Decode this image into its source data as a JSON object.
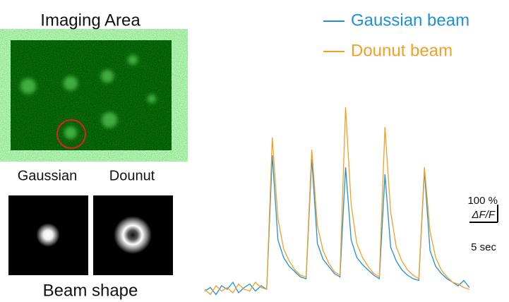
{
  "figure": {
    "image_title": "Imaging Area",
    "beam_labels": [
      "Gaussian",
      "Dounut"
    ],
    "beam_caption": "Beam shape"
  },
  "chart_data": {
    "type": "line",
    "x": [
      0,
      1,
      2,
      3,
      4,
      5,
      6,
      7,
      8,
      9,
      10,
      11,
      12,
      13,
      14,
      15,
      16,
      17,
      18,
      19,
      20,
      21,
      22,
      23,
      24,
      25,
      26,
      27,
      28,
      29,
      30,
      31,
      32,
      33,
      34,
      35,
      36,
      37,
      38,
      39,
      40,
      41,
      42,
      43,
      44,
      45,
      46,
      47
    ],
    "series": [
      {
        "name": "Gaussian beam",
        "color": "#1f8fd6",
        "values": [
          10,
          30,
          -10,
          40,
          20,
          60,
          0,
          30,
          50,
          10,
          40,
          20,
          780,
          300,
          200,
          150,
          120,
          90,
          80,
          760,
          280,
          190,
          150,
          110,
          90,
          712,
          300,
          200,
          160,
          130,
          100,
          80,
          672,
          260,
          180,
          130,
          100,
          80,
          70,
          690,
          240,
          150,
          110,
          80,
          60,
          40,
          70,
          30
        ]
      },
      {
        "name": "Dounut beam",
        "color": "#f2a024",
        "values": [
          20,
          -10,
          40,
          10,
          30,
          0,
          50,
          20,
          10,
          60,
          30,
          20,
          880,
          420,
          250,
          180,
          130,
          100,
          90,
          812,
          380,
          240,
          170,
          120,
          100,
          1052,
          500,
          280,
          200,
          150,
          110,
          90,
          940,
          460,
          260,
          180,
          130,
          100,
          80,
          712,
          350,
          200,
          130,
          90,
          60,
          50,
          30,
          20
        ]
      }
    ],
    "xlim": [
      0,
      47
    ],
    "ylim": [
      -50,
      1100
    ],
    "scale_bar": {
      "y": {
        "value": 100,
        "label": "100 %"
      },
      "y_unit": "ΔF/F",
      "x": {
        "value": 5,
        "label": "5 sec"
      }
    }
  }
}
